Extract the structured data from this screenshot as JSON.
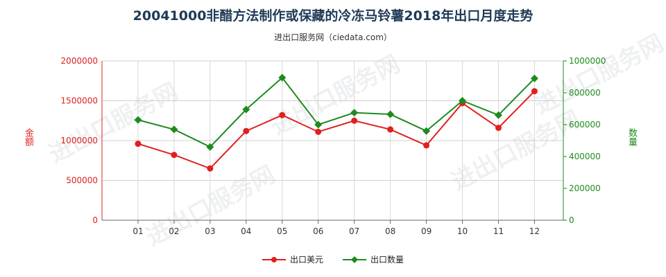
{
  "title": "20041000非醋方法制作或保藏的冷冻马铃薯2018年出口月度走势",
  "subtitle": "进出口服务网（ciedata.com）",
  "watermark": "进出口服务网",
  "colors": {
    "usd": "#e0201e",
    "qty": "#1e8a1e",
    "grid": "#cccccc",
    "title": "#1f3a57"
  },
  "chart_data": {
    "type": "line",
    "categories": [
      "01",
      "02",
      "03",
      "04",
      "05",
      "06",
      "07",
      "08",
      "09",
      "10",
      "11",
      "12"
    ],
    "y_left": {
      "label": "金额",
      "range": [
        0,
        2000000
      ],
      "ticks": [
        "0",
        "500000",
        "1000000",
        "1500000",
        "2000000"
      ]
    },
    "y_right": {
      "label": "数量",
      "range": [
        0,
        1000000
      ],
      "ticks": [
        "0",
        "200000",
        "400000",
        "600000",
        "800000",
        "1000000"
      ]
    },
    "grid": true,
    "legend_position": "bottom",
    "series": [
      {
        "name": "出口美元",
        "axis": "left",
        "color": "#e0201e",
        "marker": "circle",
        "values": [
          960000,
          820000,
          650000,
          1120000,
          1320000,
          1110000,
          1250000,
          1140000,
          940000,
          1470000,
          1160000,
          1620000
        ]
      },
      {
        "name": "出口数量",
        "axis": "right",
        "color": "#1e8a1e",
        "marker": "diamond",
        "values": [
          630000,
          570000,
          460000,
          695000,
          895000,
          600000,
          675000,
          665000,
          560000,
          750000,
          660000,
          890000
        ]
      }
    ]
  }
}
